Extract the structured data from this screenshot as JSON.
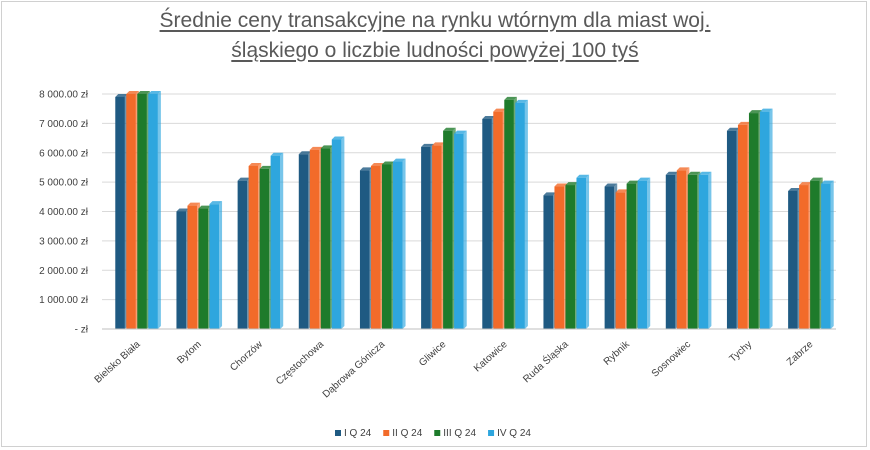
{
  "colors": {
    "series": [
      "#1f5a82",
      "#f26b2a",
      "#1e7b2b",
      "#2ea6de"
    ],
    "grid": "#d9d9d9",
    "text": "#404040",
    "title": "#595959"
  },
  "chart_data": {
    "type": "bar",
    "title_lines": [
      "Średnie ceny transakcyjne na rynku wtórnym dla miast woj.",
      "śląskiego o liczbie ludności powyżej 100 tyś"
    ],
    "categories": [
      "Bielsko Biała",
      "Bytom",
      "Chorzów",
      "Częstochowa",
      "Dąbrowa Gónicza",
      "Gliwice",
      "Katowice",
      "Ruda Śląska",
      "Rybnik",
      "Sosnowiec",
      "Tychy",
      "Zabrze"
    ],
    "series": [
      {
        "name": "I Q 24",
        "values": [
          7900,
          4000,
          5050,
          5950,
          5400,
          6200,
          7150,
          4550,
          4850,
          5250,
          6750,
          4700
        ]
      },
      {
        "name": "II Q 24",
        "values": [
          8000,
          4200,
          5550,
          6100,
          5550,
          6250,
          7400,
          4850,
          4650,
          5400,
          6950,
          4900
        ]
      },
      {
        "name": "III Q 24",
        "values": [
          8000,
          4100,
          5450,
          6150,
          5600,
          6750,
          7800,
          4900,
          4950,
          5250,
          7350,
          5050
        ]
      },
      {
        "name": "IV Q 24",
        "values": [
          8000,
          4250,
          5900,
          6450,
          5700,
          6650,
          7700,
          5150,
          5050,
          5250,
          7400,
          4950
        ]
      }
    ],
    "ylim": [
      0,
      8000
    ],
    "yticks": [
      0,
      1000,
      2000,
      3000,
      4000,
      5000,
      6000,
      7000,
      8000
    ],
    "ytick_labels": [
      "- zł",
      "1 000.00 zł",
      "2 000.00 zł",
      "3 000.00 zł",
      "4 000.00 zł",
      "5 000.00 zł",
      "6 000.00 zł",
      "7 000.00 zł",
      "8 000.00 zł"
    ],
    "grid": true,
    "legend_position": "bottom"
  }
}
